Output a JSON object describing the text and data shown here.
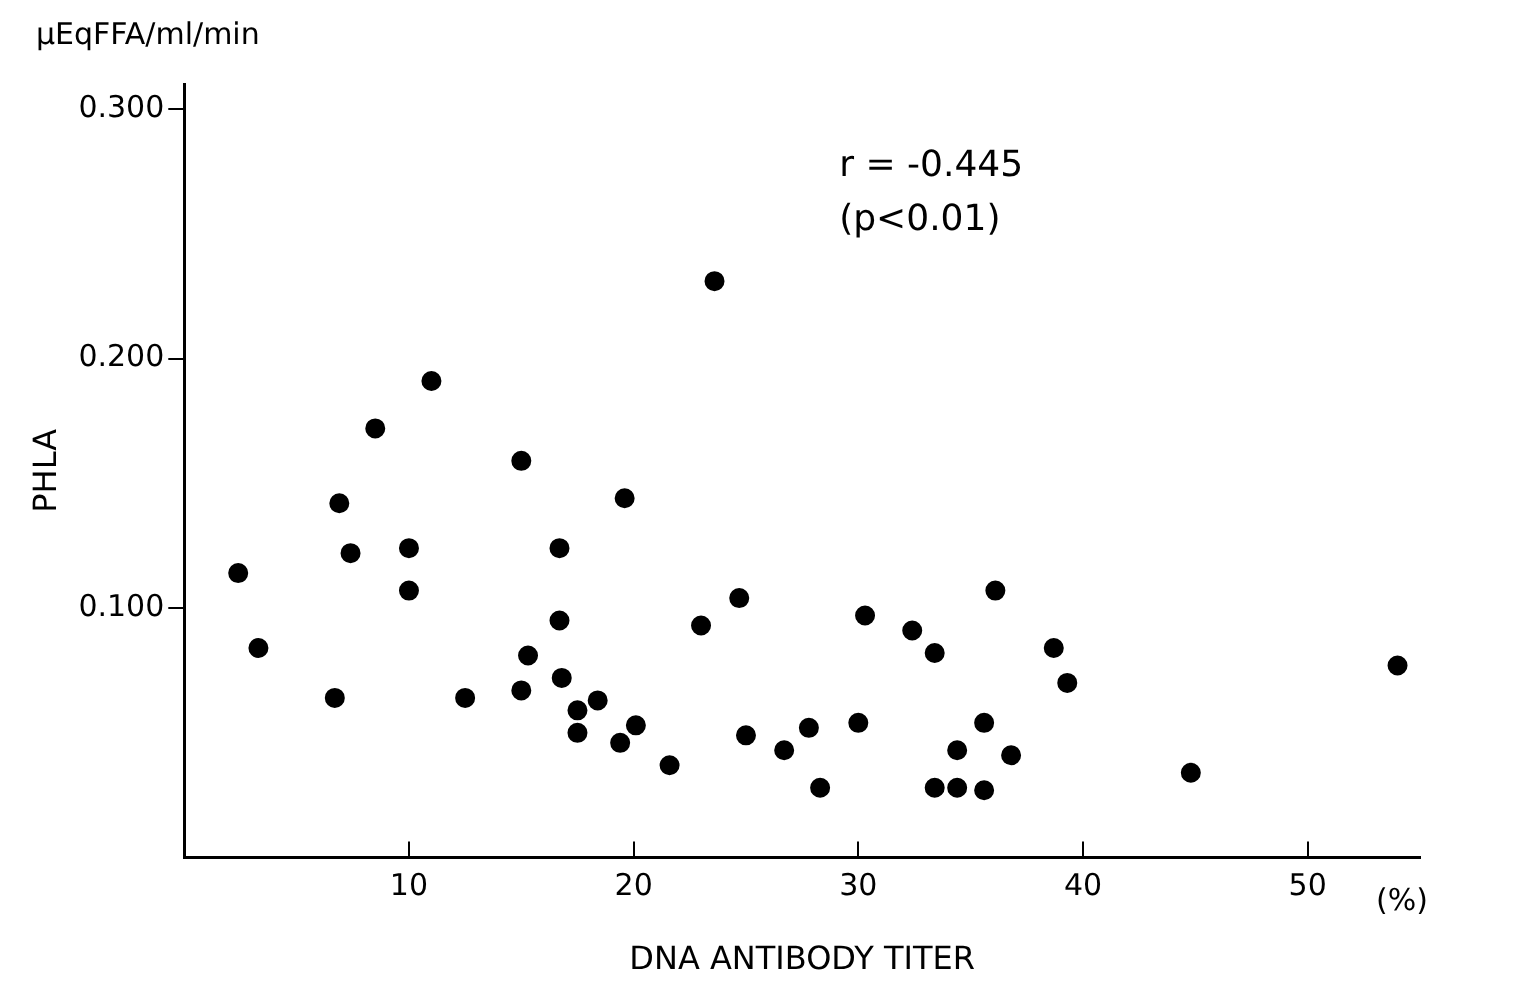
{
  "chart_data": {
    "type": "scatter",
    "xlabel": "DNA ANTIBODY TITER",
    "ylabel": "PHLA",
    "annotations": [
      "μEqFFA/ml/min",
      "r = -0.445",
      "(p<0.01)",
      "(%)"
    ],
    "xlim": [
      0,
      55
    ],
    "xticks": [
      10,
      20,
      30,
      40,
      50
    ],
    "ylim": [
      0,
      0.31
    ],
    "yticks": [
      {
        "value": 0.1,
        "label": "0.100"
      },
      {
        "value": 0.2,
        "label": "0.200"
      },
      {
        "value": 0.3,
        "label": "0.300"
      }
    ],
    "grid": false,
    "legend": false,
    "marker": "circle",
    "series": [
      {
        "color": "#000000",
        "x": [
          2.4,
          3.3,
          6.7,
          6.9,
          7.4,
          8.5,
          10.0,
          10.0,
          11.0,
          12.5,
          15.0,
          15.0,
          15.3,
          16.7,
          16.7,
          16.8,
          17.5,
          17.5,
          18.4,
          19.6,
          19.4,
          20.1,
          21.6,
          23.0,
          23.6,
          24.7,
          25.0,
          26.7,
          27.8,
          28.3,
          30.0,
          30.3,
          32.4,
          33.4,
          33.4,
          34.4,
          34.4,
          35.6,
          35.6,
          36.1,
          36.8,
          38.7,
          39.3,
          44.8,
          54.0
        ],
        "values": [
          0.114,
          0.084,
          0.064,
          0.142,
          0.122,
          0.172,
          0.124,
          0.107,
          0.191,
          0.064,
          0.159,
          0.067,
          0.081,
          0.124,
          0.095,
          0.072,
          0.059,
          0.05,
          0.063,
          0.144,
          0.046,
          0.053,
          0.037,
          0.093,
          0.231,
          0.104,
          0.049,
          0.043,
          0.052,
          0.028,
          0.054,
          0.097,
          0.091,
          0.082,
          0.028,
          0.043,
          0.028,
          0.027,
          0.054,
          0.107,
          0.041,
          0.084,
          0.07,
          0.034,
          0.077
        ]
      }
    ]
  }
}
